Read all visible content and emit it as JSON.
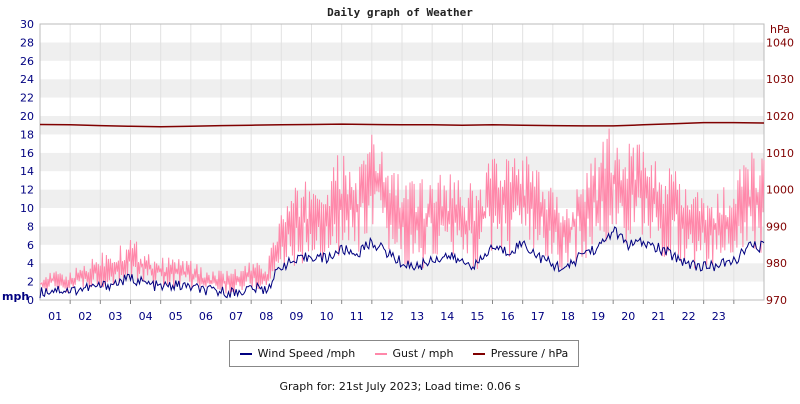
{
  "chart_data": {
    "type": "line",
    "title": "Daily graph of Weather",
    "x_ticks": [
      "01",
      "02",
      "03",
      "04",
      "05",
      "06",
      "07",
      "08",
      "09",
      "10",
      "11",
      "12",
      "13",
      "14",
      "15",
      "16",
      "17",
      "18",
      "19",
      "20",
      "21",
      "22",
      "23"
    ],
    "x_range": [
      0,
      24
    ],
    "y_left": {
      "label": "mph",
      "range": [
        0,
        30
      ],
      "ticks": [
        0,
        2,
        4,
        6,
        8,
        10,
        12,
        14,
        16,
        18,
        20,
        22,
        24,
        26,
        28,
        30
      ]
    },
    "y_right": {
      "label": "hPa",
      "range": [
        970,
        1045
      ],
      "ticks": [
        970,
        980,
        990,
        1000,
        1010,
        1020,
        1030,
        1040
      ]
    },
    "grid": "horizontal-bands",
    "legend_position": "bottom-center",
    "series": [
      {
        "name": "Wind Speed /mph",
        "axis": "left",
        "color": "#000080",
        "hours": [
          0,
          0.5,
          1,
          1.5,
          2,
          2.5,
          3,
          3.5,
          4,
          4.5,
          5,
          5.5,
          6,
          6.5,
          7,
          7.5,
          8,
          8.5,
          9,
          9.5,
          10,
          10.5,
          11,
          11.5,
          12,
          12.5,
          13,
          13.5,
          14,
          14.5,
          15,
          15.5,
          16,
          16.5,
          17,
          17.5,
          18,
          18.5,
          19,
          19.5,
          20,
          20.5,
          21,
          21.5,
          22,
          22.5,
          23,
          23.5
        ],
        "values": [
          0.8,
          1.2,
          1.0,
          1.3,
          1.5,
          1.8,
          2.4,
          1.8,
          1.4,
          1.6,
          1.4,
          1.0,
          0.9,
          0.8,
          1.3,
          1.1,
          3.8,
          4.2,
          4.8,
          4.5,
          5.5,
          5.0,
          6.3,
          5.2,
          4.0,
          3.6,
          4.4,
          4.8,
          4.1,
          3.8,
          5.8,
          5.2,
          6.2,
          4.8,
          3.8,
          3.4,
          5.2,
          5.6,
          7.6,
          6.0,
          6.2,
          5.6,
          4.8,
          4.0,
          3.6,
          3.8,
          4.2,
          5.8
        ]
      },
      {
        "name": "Gust / mph",
        "axis": "left",
        "color": "#ff88aa",
        "hours": [
          0,
          0.5,
          1,
          1.5,
          2,
          2.5,
          3,
          3.5,
          4,
          4.5,
          5,
          5.5,
          6,
          6.5,
          7,
          7.5,
          8,
          8.5,
          9,
          9.5,
          10,
          10.5,
          11,
          11.5,
          12,
          12.5,
          13,
          13.5,
          14,
          14.5,
          15,
          15.5,
          16,
          16.5,
          17,
          17.5,
          18,
          18.5,
          19,
          19.5,
          20,
          20.5,
          21,
          21.5,
          22,
          22.5,
          23,
          23.5
        ],
        "values": [
          1.8,
          2.2,
          2.0,
          2.6,
          3.4,
          3.6,
          4.4,
          3.6,
          3.0,
          3.2,
          2.8,
          2.2,
          2.0,
          2.2,
          2.8,
          2.4,
          6.8,
          8.0,
          9.0,
          8.6,
          10.6,
          9.8,
          12.8,
          10.8,
          8.8,
          8.0,
          9.4,
          9.6,
          8.6,
          8.0,
          11.2,
          10.4,
          11.4,
          9.6,
          8.0,
          7.2,
          10.2,
          10.8,
          13.2,
          11.4,
          11.8,
          10.6,
          9.6,
          8.4,
          7.6,
          8.0,
          8.6,
          10.6
        ],
        "min_values": [
          0.6,
          0.9,
          0.8,
          1.1,
          1.3,
          1.6,
          2.1,
          1.6,
          1.2,
          1.4,
          1.2,
          0.8,
          0.6,
          0.6,
          1.1,
          0.9,
          3.2,
          3.6,
          4.2,
          3.9,
          4.8,
          4.3,
          5.5,
          4.5,
          3.4,
          3.0,
          3.8,
          4.2,
          3.5,
          3.2,
          5.0,
          4.5,
          5.4,
          4.1,
          3.2,
          2.8,
          4.5,
          4.8,
          6.6,
          5.2,
          5.4,
          4.8,
          4.1,
          3.4,
          3.0,
          3.2,
          3.6,
          5.0
        ],
        "max_values": [
          2.5,
          3.2,
          3.0,
          4.3,
          5.4,
          6.5,
          7.0,
          5.8,
          4.6,
          4.8,
          4.4,
          3.3,
          3.2,
          3.4,
          4.2,
          3.8,
          10.4,
          12.4,
          13.8,
          13.6,
          16.6,
          14.2,
          18.6,
          16.0,
          13.6,
          13.0,
          14.4,
          14.6,
          13.2,
          12.4,
          17.0,
          15.6,
          16.8,
          14.2,
          12.0,
          10.6,
          15.4,
          16.2,
          19.6,
          17.4,
          18.2,
          15.4,
          14.2,
          12.8,
          11.4,
          12.0,
          13.0,
          16.2
        ]
      },
      {
        "name": "Pressure / hPa",
        "axis": "right",
        "color": "#800000",
        "hours": [
          0,
          1,
          2,
          3,
          4,
          5,
          6,
          7,
          8,
          9,
          10,
          11,
          12,
          13,
          14,
          15,
          16,
          17,
          18,
          19,
          20,
          21,
          22,
          23,
          24
        ],
        "values": [
          1017.7,
          1017.6,
          1017.4,
          1017.2,
          1017.1,
          1017.2,
          1017.4,
          1017.5,
          1017.6,
          1017.7,
          1017.8,
          1017.7,
          1017.6,
          1017.6,
          1017.5,
          1017.6,
          1017.5,
          1017.4,
          1017.3,
          1017.3,
          1017.6,
          1017.9,
          1018.2,
          1018.2,
          1018.1
        ]
      }
    ]
  },
  "footer_text": "Graph for: 21st July 2023; Load time: 0.06 s"
}
